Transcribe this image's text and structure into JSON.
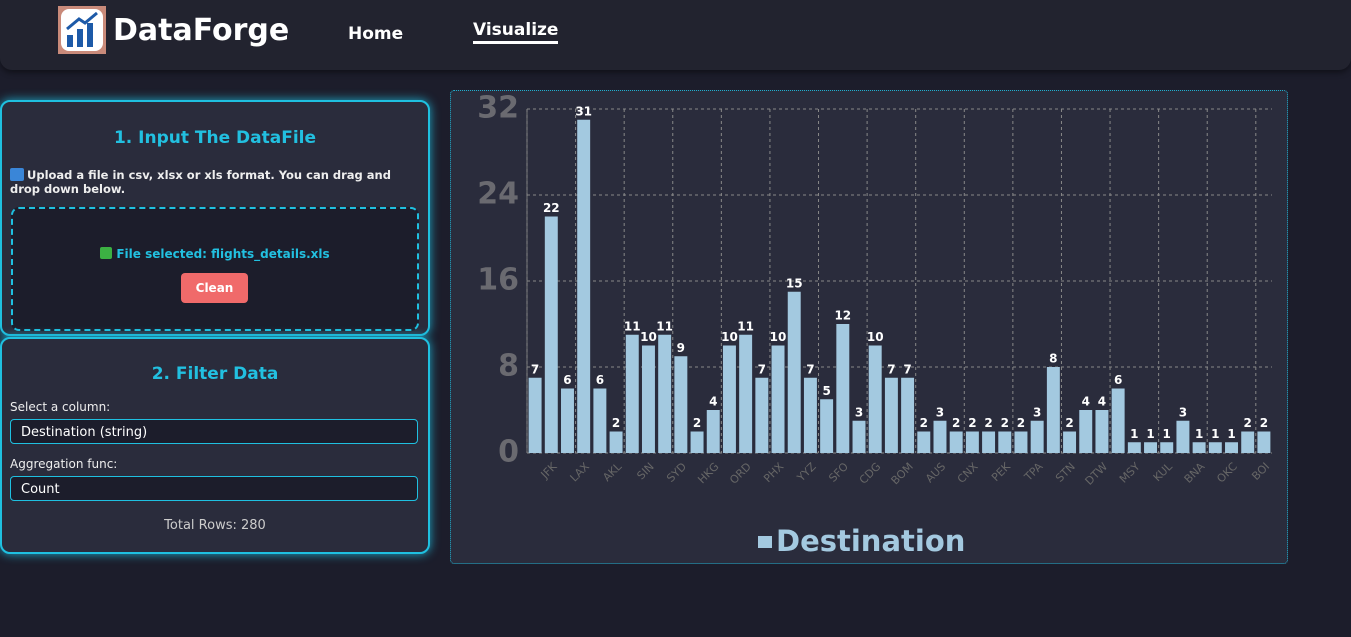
{
  "header": {
    "brand": "DataForge",
    "nav": [
      "Home",
      "Visualize"
    ]
  },
  "input_panel": {
    "title": "1. Input The DataFile",
    "info": "Upload a file in csv, xlsx or xls format. You can drag and drop down below.",
    "file_status": "File selected: flights_details.xls",
    "button": "Clean"
  },
  "filter_panel": {
    "title": "2. Filter Data",
    "column_label": "Select a column:",
    "column_value": "Destination (string)",
    "agg_label": "Aggregation func:",
    "agg_value": "Count",
    "total_rows": "Total Rows: 280"
  },
  "chart_data": {
    "type": "bar",
    "categories": [
      null,
      "JFK",
      null,
      "LAX",
      null,
      "AKL",
      null,
      "SIN",
      null,
      "SYD",
      null,
      "HKG",
      null,
      "ORD",
      null,
      "PHX",
      null,
      "YYZ",
      null,
      "SFO",
      null,
      "CDG",
      null,
      "BOM",
      null,
      "AUS",
      null,
      "CNX",
      null,
      "PEK",
      null,
      "TPA",
      null,
      "STN",
      null,
      "DTW",
      null,
      "MSY",
      null,
      "KUL",
      null,
      "BNA",
      null,
      "OKC",
      null,
      "BOI"
    ],
    "series": [
      {
        "name": "Destination",
        "color": "#a3c9e0",
        "values": [
          7,
          22,
          6,
          31,
          6,
          2,
          11,
          10,
          11,
          9,
          2,
          4,
          10,
          11,
          7,
          10,
          15,
          7,
          5,
          12,
          3,
          10,
          7,
          7,
          2,
          3,
          2,
          2,
          2,
          2,
          2,
          3,
          8,
          2,
          4,
          4,
          6,
          1,
          1,
          1,
          3,
          1,
          1,
          1,
          2,
          2
        ]
      }
    ],
    "ylim": [
      0,
      32
    ],
    "yticks": [
      0,
      8,
      16,
      24,
      32
    ],
    "grid": true,
    "legend": "bottom"
  }
}
